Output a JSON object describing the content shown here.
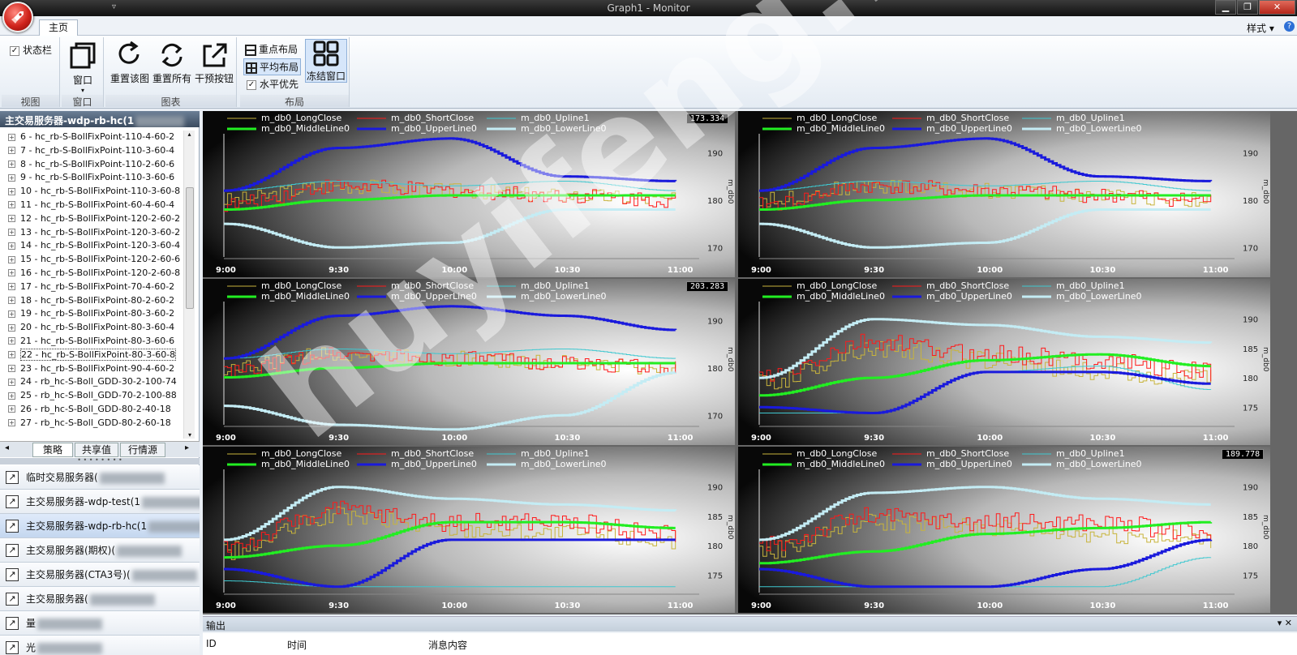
{
  "window": {
    "title": "Graph1 - Monitor",
    "qat": "▿",
    "min": "▁",
    "max": "❐",
    "close": "✕"
  },
  "tabs": {
    "home": "主页",
    "style_menu": "样式",
    "help": "?"
  },
  "ribbon": {
    "groups": {
      "view": "视图",
      "window": "窗口",
      "chart": "图表",
      "layout": "布局"
    },
    "statusbar_label": "状态栏",
    "window_button": "窗口",
    "reset_chart": "重置该图",
    "reset_all": "重置所有",
    "intervene": "干预按钮",
    "focus_layout": "重点布局",
    "even_layout": "平均布局",
    "horizontal_first": "水平优先",
    "freeze_window": "冻结窗口"
  },
  "left": {
    "header": "主交易服务器-wdp-rb-hc(1",
    "tree_items": [
      "6 - hc_rb-S-BollFixPoint-110-4-60-2",
      "7 - hc_rb-S-BollFixPoint-110-3-60-4",
      "8 - hc_rb-S-BollFixPoint-110-2-60-6",
      "9 - hc_rb-S-BollFixPoint-110-3-60-6",
      "10 - hc_rb-S-BollFixPoint-110-3-60-8",
      "11 - hc_rb-S-BollFixPoint-60-4-60-4",
      "12 - hc_rb-S-BollFixPoint-120-2-60-2",
      "13 - hc_rb-S-BollFixPoint-120-3-60-2",
      "14 - hc_rb-S-BollFixPoint-120-3-60-4",
      "15 - hc_rb-S-BollFixPoint-120-2-60-6",
      "16 - hc_rb-S-BollFixPoint-120-2-60-8",
      "17 - hc_rb-S-BollFixPoint-70-4-60-2",
      "18 - hc_rb-S-BollFixPoint-80-2-60-2",
      "19 - hc_rb-S-BollFixPoint-80-3-60-2",
      "20 - hc_rb-S-BollFixPoint-80-3-60-4",
      "21 - hc_rb-S-BollFixPoint-80-3-60-6",
      "22 - hc_rb-S-BollFixPoint-80-3-60-8",
      "23 - hc_rb-S-BollFixPoint-90-4-60-2",
      "24 - rb_hc-S-Boll_GDD-30-2-100-74",
      "25 - rb_hc-S-Boll_GDD-70-2-100-88",
      "26 - rb_hc-S-Boll_GDD-80-2-40-18",
      "27 - rb_hc-S-Boll_GDD-80-2-60-18"
    ],
    "selected_index": 16,
    "bottom_tabs": [
      "策略",
      "共享值",
      "行情源"
    ],
    "servers": [
      "临时交易服务器(",
      "主交易服务器-wdp-test(1",
      "主交易服务器-wdp-rb-hc(1",
      "主交易服务器(期权)(",
      "主交易服务器(CTA3号)(",
      "主交易服务器(",
      "量",
      "光"
    ],
    "active_server": 2
  },
  "legend": [
    "m_db0_LongClose",
    "m_db0_ShortClose",
    "m_db0_Upline1",
    "m_db0_MiddleLine0",
    "m_db0_UpperLine0",
    "m_db0_LowerLine0"
  ],
  "x_ticks": [
    "9:00",
    "9:30",
    "10:00",
    "10:30",
    "11:00"
  ],
  "charts": [
    {
      "badge": "173.334",
      "axis_label": "m_db0",
      "y_ticks": [
        "190",
        "180",
        "170"
      ]
    },
    {
      "badge": "",
      "axis_label": "m_db0",
      "y_ticks": [
        "190",
        "180",
        "170"
      ]
    },
    {
      "badge": "203.283",
      "axis_label": "m_db0",
      "y_ticks": [
        "190",
        "180",
        "170"
      ]
    },
    {
      "badge": "",
      "axis_label": "m_db0",
      "y_ticks": [
        "190",
        "185",
        "180",
        "175"
      ]
    },
    {
      "badge": "",
      "axis_label": "m_db0",
      "y_ticks": [
        "190",
        "185",
        "180",
        "175"
      ]
    },
    {
      "badge": "189.778",
      "axis_label": "m_db0",
      "y_ticks": [
        "190",
        "185",
        "180",
        "175"
      ]
    }
  ],
  "chart_data": [
    {
      "type": "line",
      "title": "",
      "x": [
        "9:00",
        "9:30",
        "10:00",
        "10:30",
        "11:00"
      ],
      "ylim": [
        168,
        194
      ],
      "series": [
        {
          "name": "m_db0_LongClose",
          "values": [
            180,
            183,
            182,
            181,
            180
          ]
        },
        {
          "name": "m_db0_ShortClose",
          "values": [
            179,
            183,
            182,
            181,
            180
          ]
        },
        {
          "name": "m_db0_Upline1",
          "values": [
            182,
            184,
            183,
            184,
            182
          ]
        },
        {
          "name": "m_db0_MiddleLine0",
          "values": [
            178,
            180,
            181,
            181,
            181
          ]
        },
        {
          "name": "m_db0_UpperLine0",
          "values": [
            182,
            191,
            193,
            185,
            184
          ]
        },
        {
          "name": "m_db0_LowerLine0",
          "values": [
            175,
            170,
            171,
            178,
            178
          ]
        }
      ]
    },
    {
      "type": "line",
      "title": "",
      "x": [
        "9:00",
        "9:30",
        "10:00",
        "10:30",
        "11:00"
      ],
      "ylim": [
        168,
        194
      ],
      "series": [
        {
          "name": "m_db0_LongClose",
          "values": [
            180,
            183,
            182,
            181,
            180
          ]
        },
        {
          "name": "m_db0_ShortClose",
          "values": [
            179,
            183,
            182,
            181,
            180
          ]
        },
        {
          "name": "m_db0_Upline1",
          "values": [
            182,
            184,
            183,
            184,
            182
          ]
        },
        {
          "name": "m_db0_MiddleLine0",
          "values": [
            178,
            180,
            181,
            181,
            181
          ]
        },
        {
          "name": "m_db0_UpperLine0",
          "values": [
            182,
            191,
            193,
            185,
            184
          ]
        },
        {
          "name": "m_db0_LowerLine0",
          "values": [
            175,
            170,
            171,
            178,
            178
          ]
        }
      ]
    },
    {
      "type": "line",
      "title": "",
      "x": [
        "9:00",
        "9:30",
        "10:00",
        "10:30",
        "11:00"
      ],
      "ylim": [
        168,
        194
      ],
      "series": [
        {
          "name": "m_db0_LongClose",
          "values": [
            180,
            183,
            182,
            181,
            180
          ]
        },
        {
          "name": "m_db0_ShortClose",
          "values": [
            179,
            183,
            182,
            181,
            180
          ]
        },
        {
          "name": "m_db0_Upline1",
          "values": [
            182,
            184,
            183,
            184,
            182
          ]
        },
        {
          "name": "m_db0_MiddleLine0",
          "values": [
            178,
            180,
            181,
            181,
            181
          ]
        },
        {
          "name": "m_db0_UpperLine0",
          "values": [
            182,
            191,
            193,
            191,
            188
          ]
        },
        {
          "name": "m_db0_LowerLine0",
          "values": [
            172,
            168,
            167,
            170,
            179
          ]
        }
      ]
    },
    {
      "type": "line",
      "title": "",
      "x": [
        "9:00",
        "9:30",
        "10:00",
        "10:30",
        "11:00"
      ],
      "ylim": [
        172,
        193
      ],
      "series": [
        {
          "name": "m_db0_LongClose",
          "values": [
            179,
            185,
            183,
            181,
            180
          ]
        },
        {
          "name": "m_db0_ShortClose",
          "values": [
            180,
            186,
            184,
            183,
            181
          ]
        },
        {
          "name": "m_db0_Upline1",
          "values": [
            174,
            174,
            181,
            182,
            178
          ]
        },
        {
          "name": "m_db0_MiddleLine0",
          "values": [
            177,
            180,
            183,
            184,
            182
          ]
        },
        {
          "name": "m_db0_UpperLine0",
          "values": [
            175,
            174,
            181,
            181,
            179
          ]
        },
        {
          "name": "m_db0_LowerLine0",
          "values": [
            180,
            190,
            189,
            187,
            186
          ]
        }
      ]
    },
    {
      "type": "line",
      "title": "",
      "x": [
        "9:00",
        "9:30",
        "10:00",
        "10:30",
        "11:00"
      ],
      "ylim": [
        172,
        193
      ],
      "series": [
        {
          "name": "m_db0_LongClose",
          "values": [
            179,
            185,
            183,
            182,
            181
          ]
        },
        {
          "name": "m_db0_ShortClose",
          "values": [
            180,
            186,
            184,
            184,
            182
          ]
        },
        {
          "name": "m_db0_Upline1",
          "values": [
            174,
            173,
            173,
            173,
            173
          ]
        },
        {
          "name": "m_db0_MiddleLine0",
          "values": [
            178,
            180,
            184,
            184,
            183
          ]
        },
        {
          "name": "m_db0_UpperLine0",
          "values": [
            176,
            173,
            181,
            181,
            181
          ]
        },
        {
          "name": "m_db0_LowerLine0",
          "values": [
            181,
            190,
            188,
            187,
            186
          ]
        }
      ]
    },
    {
      "type": "line",
      "title": "",
      "x": [
        "9:00",
        "9:30",
        "10:00",
        "10:30",
        "11:00"
      ],
      "ylim": [
        172,
        193
      ],
      "series": [
        {
          "name": "m_db0_LongClose",
          "values": [
            179,
            184,
            183,
            182,
            181
          ]
        },
        {
          "name": "m_db0_ShortClose",
          "values": [
            180,
            185,
            184,
            184,
            182
          ]
        },
        {
          "name": "m_db0_Upline1",
          "values": [
            173,
            173,
            173,
            173,
            178
          ]
        },
        {
          "name": "m_db0_MiddleLine0",
          "values": [
            177,
            179,
            182,
            183,
            184
          ]
        },
        {
          "name": "m_db0_UpperLine0",
          "values": [
            176,
            173,
            173,
            176,
            181
          ]
        },
        {
          "name": "m_db0_LowerLine0",
          "values": [
            181,
            189,
            190,
            188,
            187
          ]
        }
      ]
    }
  ],
  "output": {
    "title": "输出",
    "controls": "▾ ✕",
    "columns": [
      "ID",
      "时间",
      "消息内容"
    ]
  },
  "watermark": "huyifeng.net",
  "colors": {
    "long_close": "#c8b43c",
    "short_close": "#ff1a1a",
    "upline": "#3ec8d0",
    "middle": "#22ee22",
    "upper": "#1a1adc",
    "lower": "#c4ecf4"
  }
}
